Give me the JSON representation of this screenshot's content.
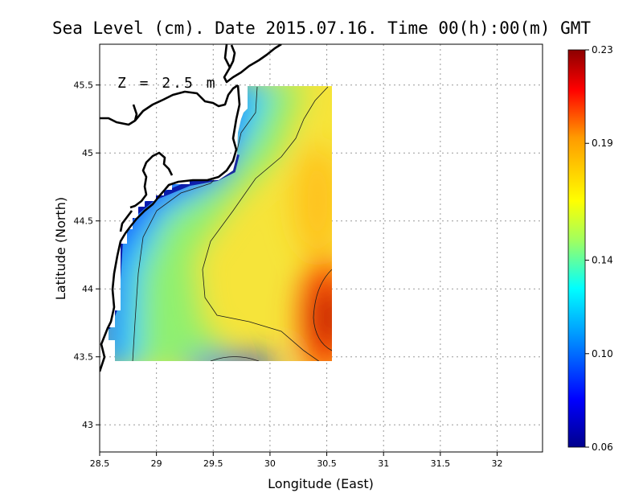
{
  "map": {
    "title": "Sea Level (cm). Date 2015.07.16. Time 00(h):00(m) GMT",
    "xlabel": "Longitude (East)",
    "ylabel": "Latitude (North)",
    "depth_label": "Z = 2.5 m",
    "xlim": [
      28.5,
      32.4
    ],
    "ylim": [
      42.8,
      45.8
    ],
    "x_ticks": [
      "28.5",
      "29",
      "29.5",
      "30",
      "30.5",
      "31",
      "31.5",
      "32"
    ],
    "y_ticks": [
      "43",
      "43.5",
      "44",
      "44.5",
      "45",
      "45.5"
    ],
    "grid": true,
    "data_extent": {
      "lon": [
        28.62,
        30.55
      ],
      "lat": [
        43.48,
        45.49
      ]
    }
  },
  "colorbar": {
    "min": 0.06,
    "max": 0.23,
    "tick_labels": [
      "0.23",
      "0.19",
      "0.14",
      "0.10",
      "0.06"
    ],
    "tick_values": [
      0.23,
      0.19,
      0.14,
      0.1,
      0.06
    ],
    "colors": [
      "#00008c",
      "#0000ff",
      "#0096ff",
      "#00ffff",
      "#a0ff60",
      "#ffff00",
      "#ff9a00",
      "#ff0000",
      "#8c0000"
    ]
  }
}
